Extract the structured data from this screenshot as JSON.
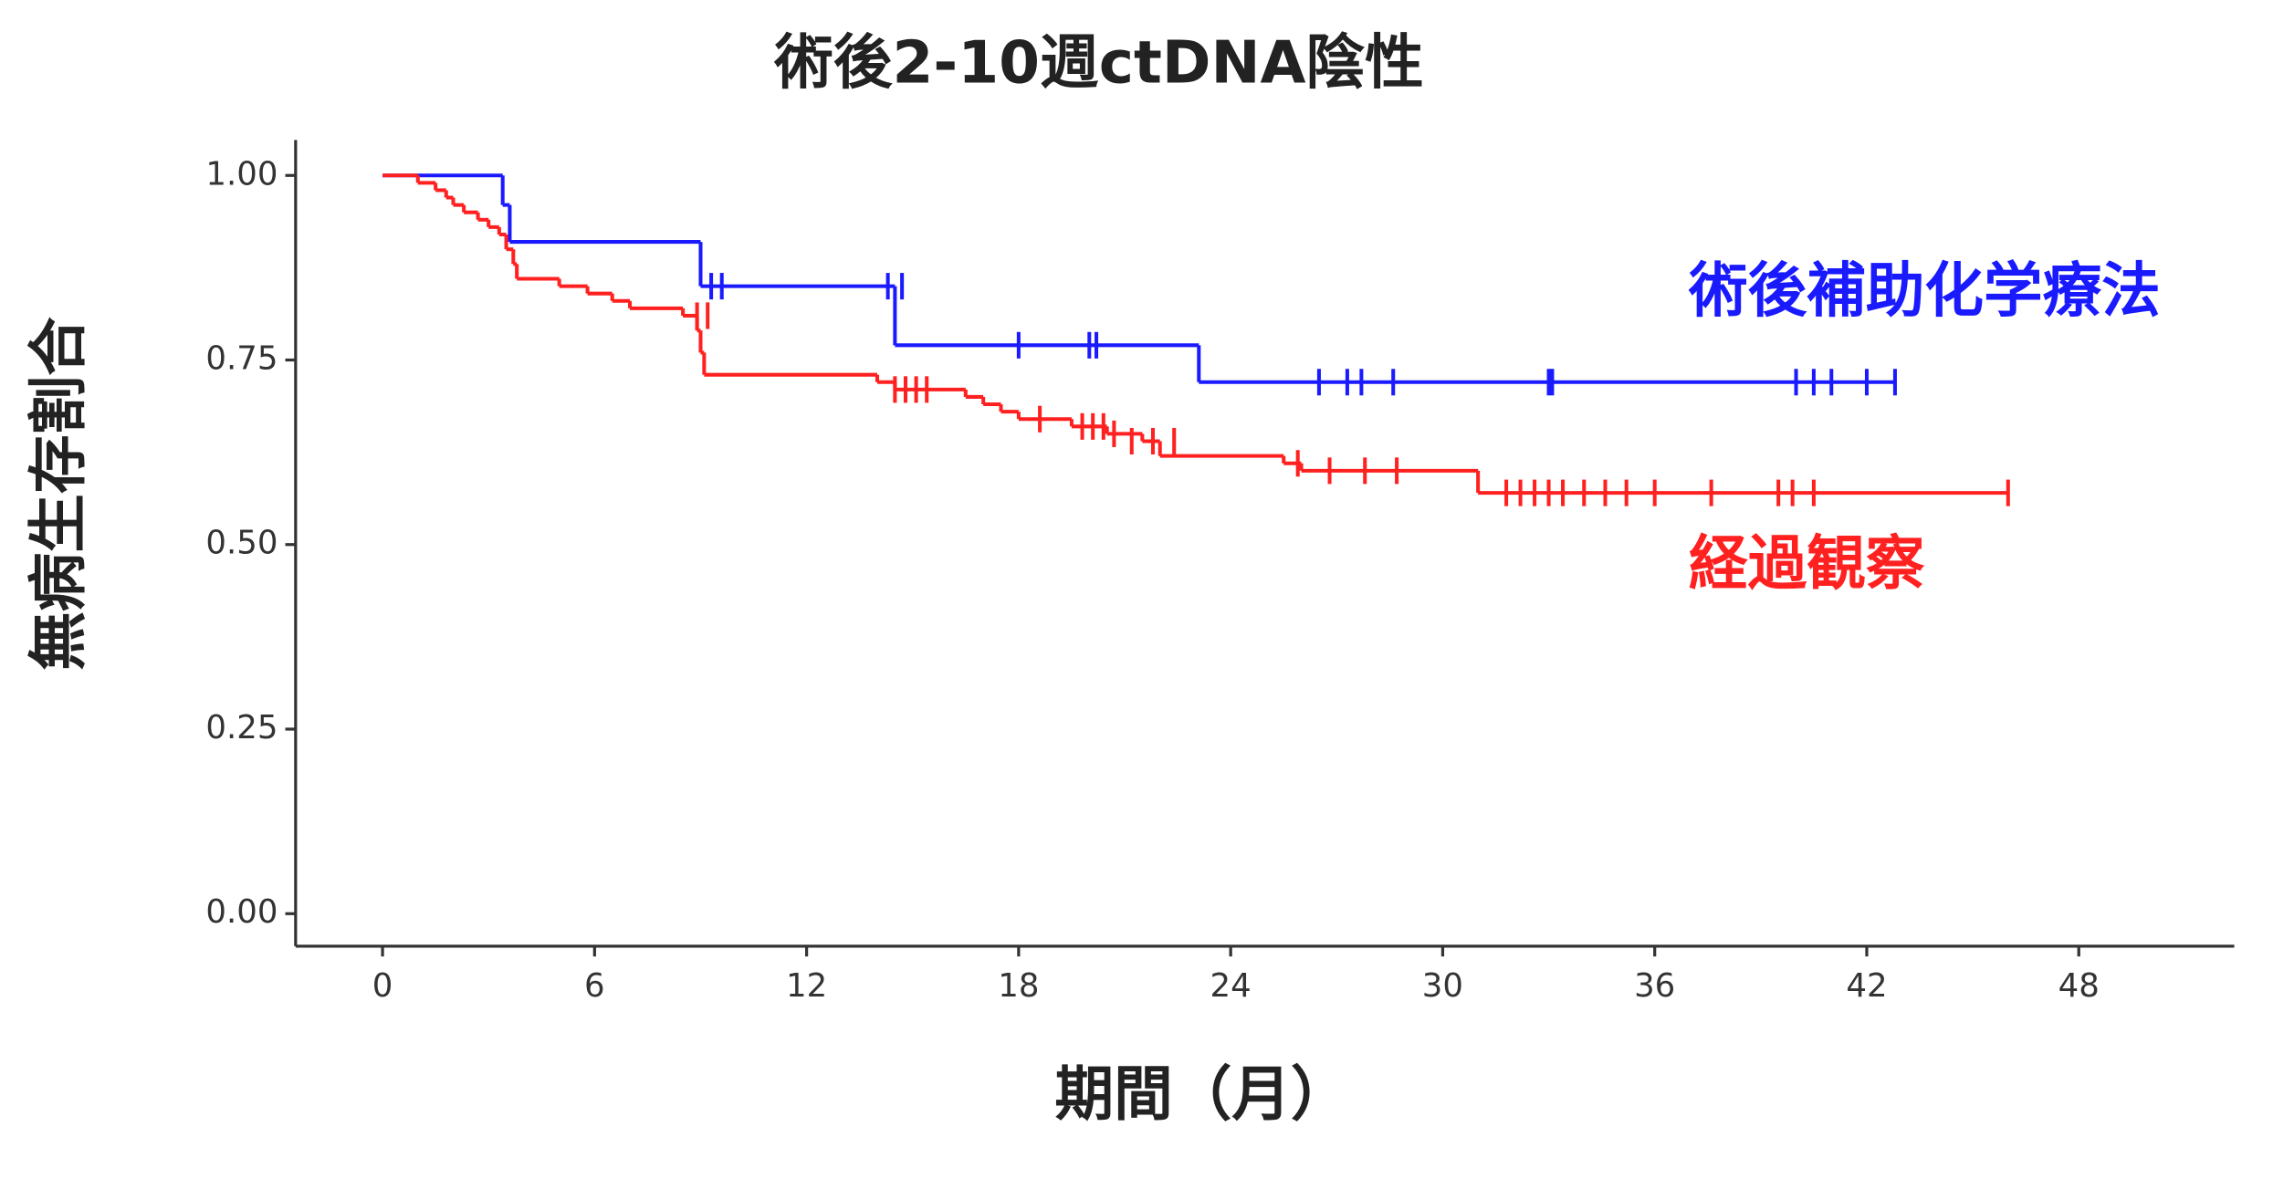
{
  "chart_data": {
    "type": "step",
    "title": "術後2-10週ctDNA陰性",
    "x_label": "期間（月）",
    "y_label": "無病生存割合",
    "xlim": [
      -2.46,
      52.4
    ],
    "ylim": [
      -0.044,
      1.048
    ],
    "xticks": [
      0,
      6,
      12,
      18,
      24,
      30,
      36,
      42,
      48
    ],
    "yticks": [
      {
        "value": 0,
        "label": "0.00"
      },
      {
        "value": 0.25,
        "label": "0.25"
      },
      {
        "value": 0.5,
        "label": "0.50"
      },
      {
        "value": 0.75,
        "label": "0.75"
      },
      {
        "value": 1,
        "label": "1.00"
      }
    ],
    "series": [
      {
        "name": "術後補助化学療法",
        "color": "#1a1aff",
        "x": [
          0,
          3.4,
          3.6,
          9.0,
          14.5,
          23.1,
          42.8
        ],
        "values": [
          1.0,
          0.96,
          0.91,
          0.85,
          0.77,
          0.72,
          0.72
        ],
        "censored": {
          "x": [
            9.3,
            9.6,
            14.3,
            14.7,
            18,
            20,
            20.2,
            26.5,
            27.3,
            27.7,
            28.6,
            33,
            33.1,
            40,
            40.5,
            41,
            42,
            42.8
          ],
          "values": [
            0.85,
            0.85,
            0.85,
            0.85,
            0.77,
            0.77,
            0.77,
            0.72,
            0.72,
            0.72,
            0.72,
            0.72,
            0.72,
            0.72,
            0.72,
            0.72,
            0.72,
            0.72
          ]
        }
      },
      {
        "name": "経過観察",
        "color": "#ff2020",
        "x": [
          0,
          1.0,
          1.5,
          1.8,
          2.0,
          2.3,
          2.7,
          3.0,
          3.3,
          3.5,
          3.7,
          3.8,
          5.0,
          5.8,
          6.5,
          7.0,
          8.5,
          8.9,
          9.0,
          9.1,
          14.0,
          14.5,
          16.5,
          17.0,
          17.5,
          18.0,
          19.5,
          20.5,
          21.5,
          22.0,
          25.5,
          26.0,
          31.0,
          46.0
        ],
        "values": [
          1.0,
          0.99,
          0.98,
          0.97,
          0.96,
          0.95,
          0.94,
          0.93,
          0.92,
          0.9,
          0.88,
          0.86,
          0.85,
          0.84,
          0.83,
          0.82,
          0.81,
          0.79,
          0.76,
          0.73,
          0.72,
          0.71,
          0.7,
          0.69,
          0.68,
          0.67,
          0.66,
          0.65,
          0.64,
          0.62,
          0.61,
          0.6,
          0.57,
          0.57
        ],
        "censored": {
          "x": [
            8.9,
            9.2,
            14.5,
            14.8,
            15.1,
            15.4,
            18.6,
            19.8,
            20.1,
            20.4,
            20.7,
            21.2,
            21.8,
            22.4,
            25.9,
            26.8,
            27.8,
            28.7,
            31.8,
            32.2,
            32.6,
            33.0,
            33.4,
            34.0,
            34.6,
            35.2,
            36.0,
            37.6,
            39.5,
            39.9,
            40.5,
            46.0
          ],
          "values": [
            0.81,
            0.81,
            0.71,
            0.71,
            0.71,
            0.71,
            0.67,
            0.66,
            0.66,
            0.66,
            0.65,
            0.64,
            0.64,
            0.64,
            0.61,
            0.6,
            0.6,
            0.6,
            0.57,
            0.57,
            0.57,
            0.57,
            0.57,
            0.57,
            0.57,
            0.57,
            0.57,
            0.57,
            0.57,
            0.57,
            0.57,
            0.57
          ]
        }
      }
    ]
  }
}
